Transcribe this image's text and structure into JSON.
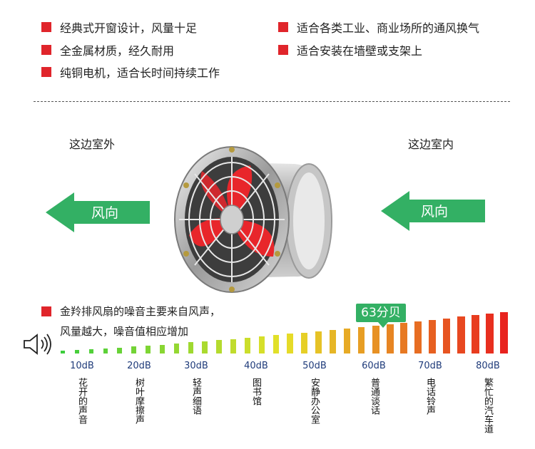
{
  "features": [
    "经典式开窗设计，风量十足",
    "适合各类工业、商业场所的通风换气",
    "全金属材质，经久耐用",
    "适合安装在墙壁或支架上",
    "纯铜电机，适合长时间持续工作"
  ],
  "diagram": {
    "left_label": "这边室外",
    "right_label": "这边室内",
    "left_arrow_text": "风向",
    "right_arrow_text": "风向"
  },
  "noise": {
    "line1": "金羚排风扇的噪音主要来自风声，",
    "line2": "风量越大，噪音值相应增加",
    "badge": "63分贝"
  },
  "scale": {
    "db_labels": [
      "10dB",
      "20dB",
      "30dB",
      "40dB",
      "50dB",
      "60dB",
      "70dB",
      "80dB"
    ],
    "descriptions": [
      "花开的声音",
      "树叶摩擦声",
      "轻声细语",
      "图书馆",
      "安静办公室",
      "普通谈话",
      "电话铃声",
      "繁忙的汽车道"
    ]
  },
  "colors": {
    "bullet_red": "#e0252b",
    "arrow_green": "#33b064",
    "fan_blade_red": "#e8262b"
  }
}
